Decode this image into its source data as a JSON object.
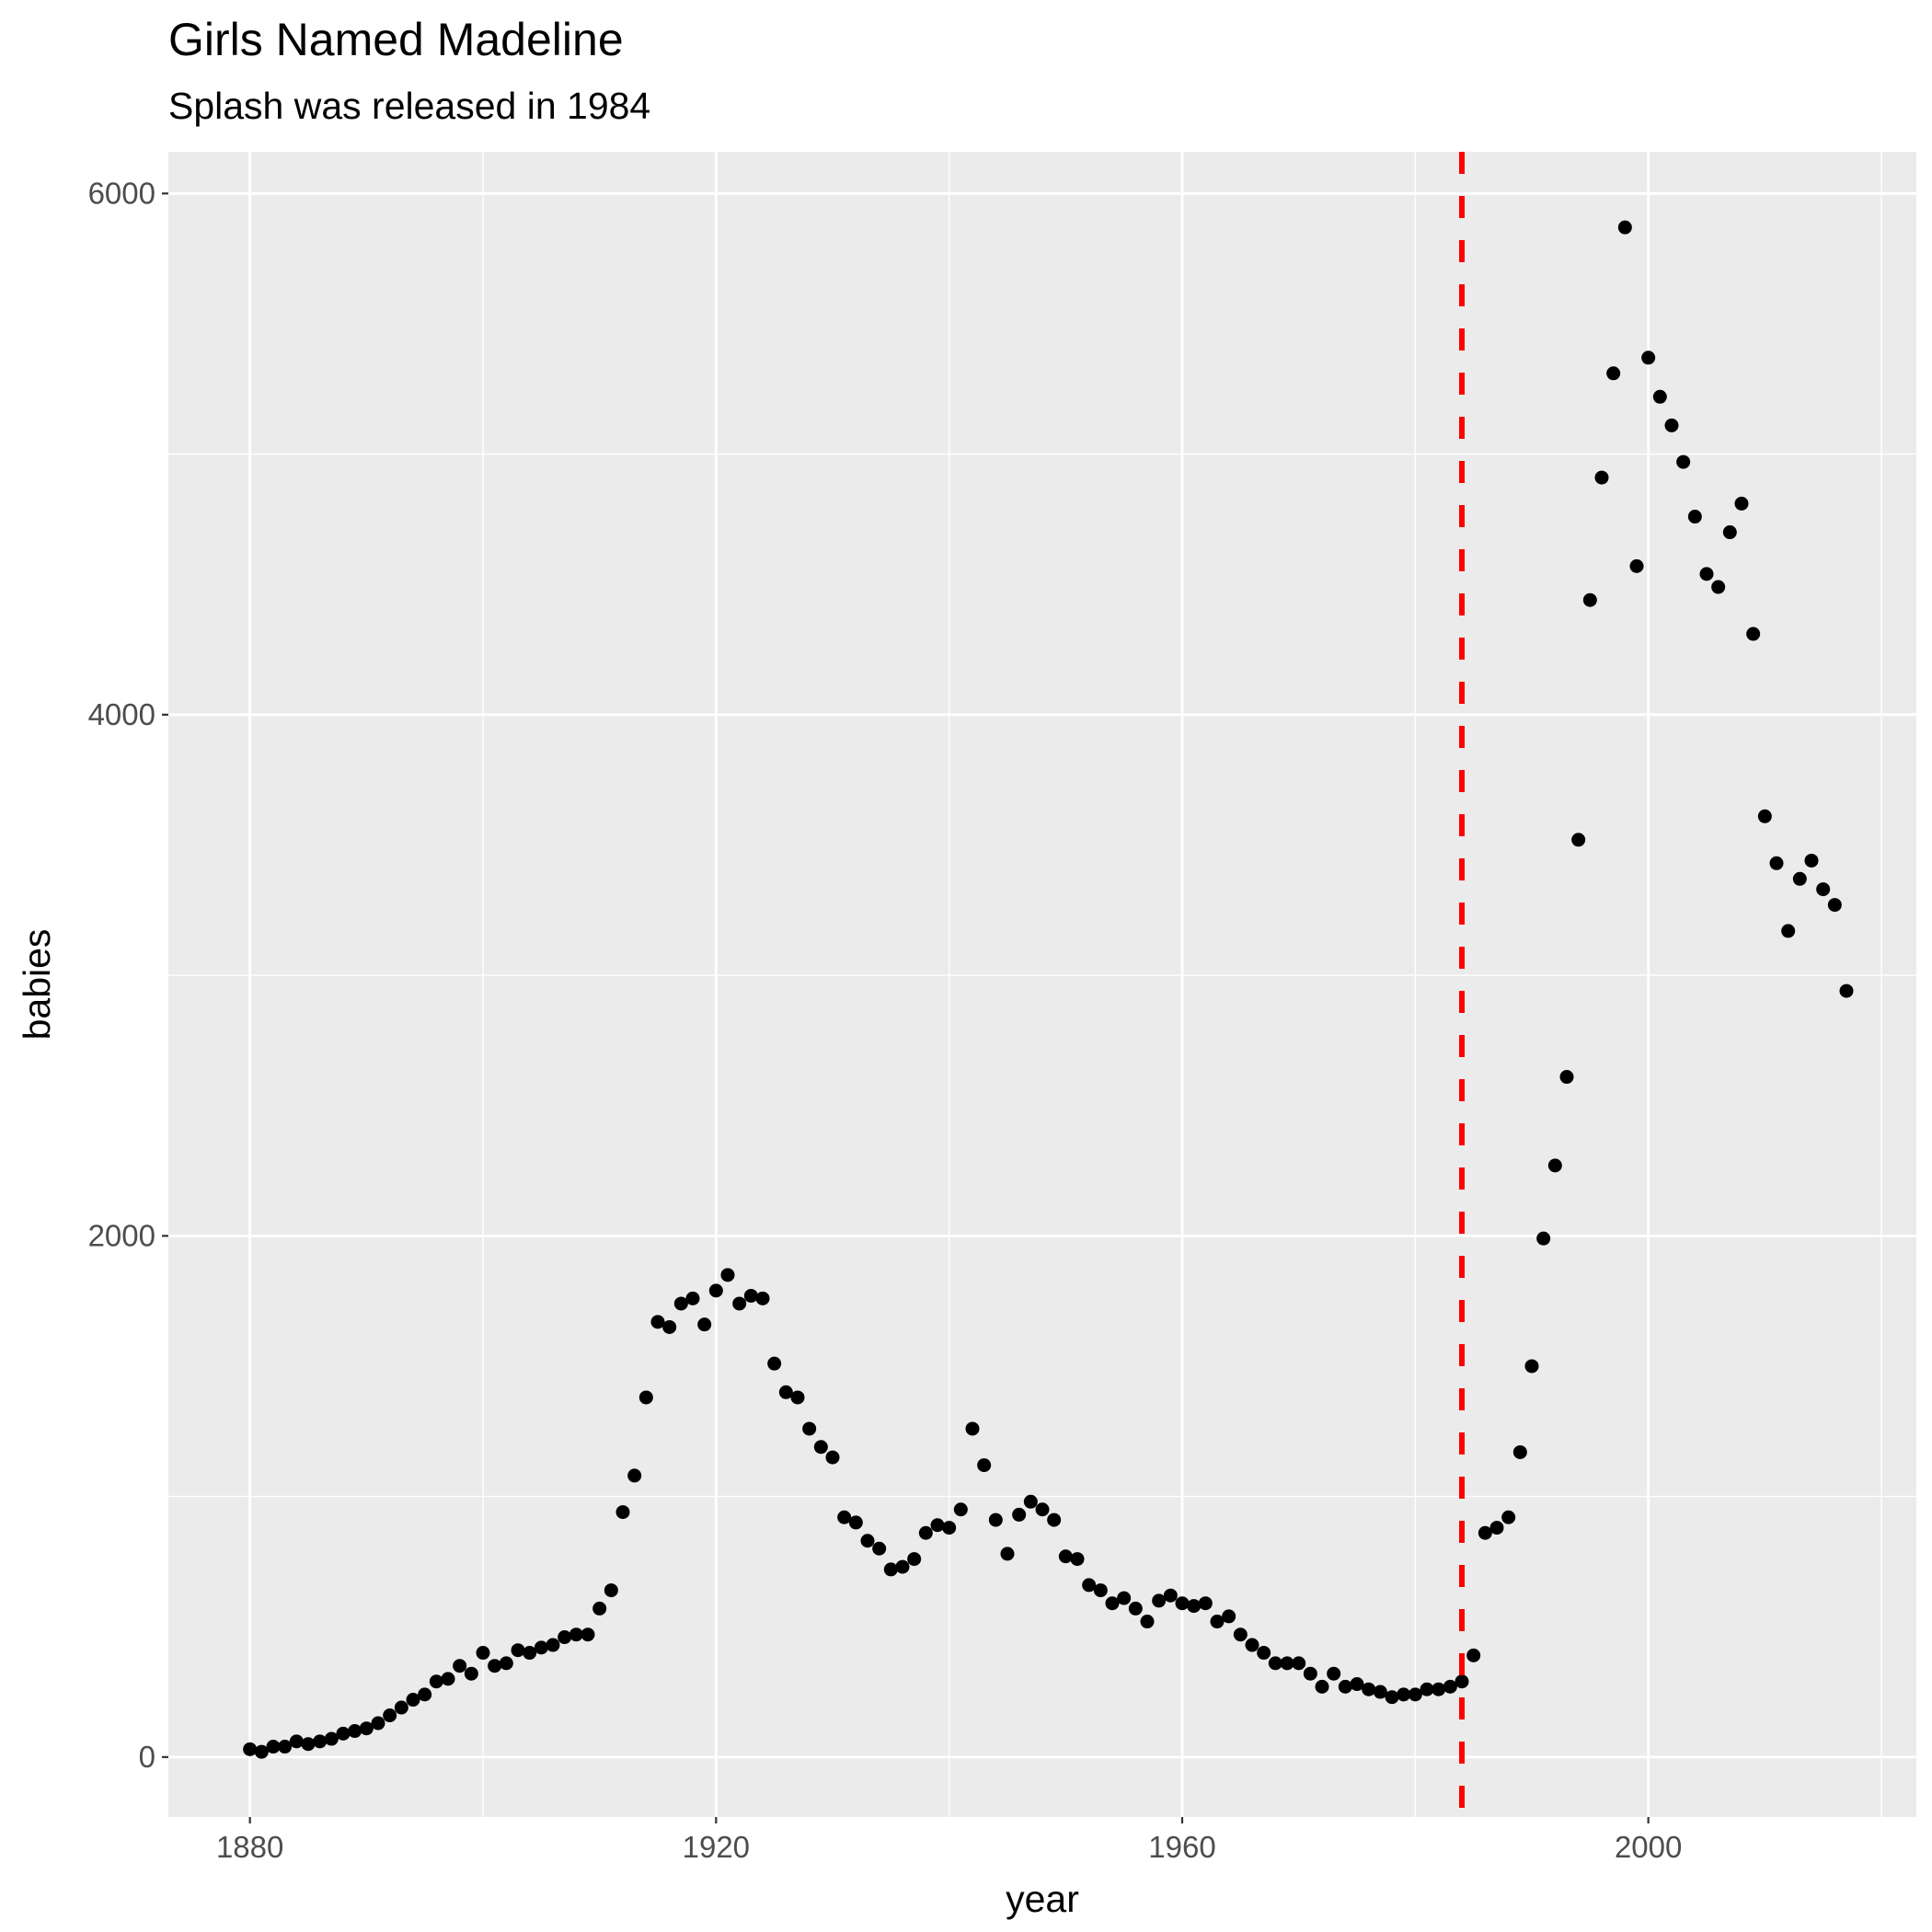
{
  "chart_data": {
    "type": "scatter",
    "title": "Girls Named Madeline",
    "subtitle": "Splash was released in 1984",
    "xlabel": "year",
    "ylabel": "babies",
    "xlim": [
      1873,
      2023
    ],
    "ylim": [
      -230,
      6160
    ],
    "x_ticks": [
      1880,
      1920,
      1960,
      2000
    ],
    "x_tick_labels": [
      "1880",
      "1920",
      "1960",
      "2000"
    ],
    "y_ticks": [
      0,
      2000,
      4000,
      6000
    ],
    "y_tick_labels": [
      "0",
      "2000",
      "4000",
      "6000"
    ],
    "grid": true,
    "reference_line": {
      "x": 1984,
      "color": "#ff0000",
      "style": "dashed"
    },
    "point_color": "#000000",
    "panel_background": "#ebebeb",
    "points": [
      {
        "x": 1880,
        "y": 30
      },
      {
        "x": 1881,
        "y": 20
      },
      {
        "x": 1882,
        "y": 40
      },
      {
        "x": 1883,
        "y": 40
      },
      {
        "x": 1884,
        "y": 60
      },
      {
        "x": 1885,
        "y": 50
      },
      {
        "x": 1886,
        "y": 60
      },
      {
        "x": 1887,
        "y": 70
      },
      {
        "x": 1888,
        "y": 90
      },
      {
        "x": 1889,
        "y": 100
      },
      {
        "x": 1890,
        "y": 110
      },
      {
        "x": 1891,
        "y": 130
      },
      {
        "x": 1892,
        "y": 160
      },
      {
        "x": 1893,
        "y": 190
      },
      {
        "x": 1894,
        "y": 220
      },
      {
        "x": 1895,
        "y": 240
      },
      {
        "x": 1896,
        "y": 290
      },
      {
        "x": 1897,
        "y": 300
      },
      {
        "x": 1898,
        "y": 350
      },
      {
        "x": 1899,
        "y": 320
      },
      {
        "x": 1900,
        "y": 400
      },
      {
        "x": 1901,
        "y": 350
      },
      {
        "x": 1902,
        "y": 360
      },
      {
        "x": 1903,
        "y": 410
      },
      {
        "x": 1904,
        "y": 400
      },
      {
        "x": 1905,
        "y": 420
      },
      {
        "x": 1906,
        "y": 430
      },
      {
        "x": 1907,
        "y": 460
      },
      {
        "x": 1908,
        "y": 470
      },
      {
        "x": 1909,
        "y": 470
      },
      {
        "x": 1910,
        "y": 570
      },
      {
        "x": 1911,
        "y": 640
      },
      {
        "x": 1912,
        "y": 940
      },
      {
        "x": 1913,
        "y": 1080
      },
      {
        "x": 1914,
        "y": 1380
      },
      {
        "x": 1915,
        "y": 1670
      },
      {
        "x": 1916,
        "y": 1650
      },
      {
        "x": 1917,
        "y": 1740
      },
      {
        "x": 1918,
        "y": 1760
      },
      {
        "x": 1919,
        "y": 1660
      },
      {
        "x": 1920,
        "y": 1790
      },
      {
        "x": 1921,
        "y": 1850
      },
      {
        "x": 1922,
        "y": 1740
      },
      {
        "x": 1923,
        "y": 1770
      },
      {
        "x": 1924,
        "y": 1760
      },
      {
        "x": 1925,
        "y": 1510
      },
      {
        "x": 1926,
        "y": 1400
      },
      {
        "x": 1927,
        "y": 1380
      },
      {
        "x": 1928,
        "y": 1260
      },
      {
        "x": 1929,
        "y": 1190
      },
      {
        "x": 1930,
        "y": 1150
      },
      {
        "x": 1931,
        "y": 920
      },
      {
        "x": 1932,
        "y": 900
      },
      {
        "x": 1933,
        "y": 830
      },
      {
        "x": 1934,
        "y": 800
      },
      {
        "x": 1935,
        "y": 720
      },
      {
        "x": 1936,
        "y": 730
      },
      {
        "x": 1937,
        "y": 760
      },
      {
        "x": 1938,
        "y": 860
      },
      {
        "x": 1939,
        "y": 890
      },
      {
        "x": 1940,
        "y": 880
      },
      {
        "x": 1941,
        "y": 950
      },
      {
        "x": 1942,
        "y": 1260
      },
      {
        "x": 1943,
        "y": 1120
      },
      {
        "x": 1944,
        "y": 910
      },
      {
        "x": 1945,
        "y": 780
      },
      {
        "x": 1946,
        "y": 930
      },
      {
        "x": 1947,
        "y": 980
      },
      {
        "x": 1948,
        "y": 950
      },
      {
        "x": 1949,
        "y": 910
      },
      {
        "x": 1950,
        "y": 770
      },
      {
        "x": 1951,
        "y": 760
      },
      {
        "x": 1952,
        "y": 660
      },
      {
        "x": 1953,
        "y": 640
      },
      {
        "x": 1954,
        "y": 590
      },
      {
        "x": 1955,
        "y": 610
      },
      {
        "x": 1956,
        "y": 570
      },
      {
        "x": 1957,
        "y": 520
      },
      {
        "x": 1958,
        "y": 600
      },
      {
        "x": 1959,
        "y": 620
      },
      {
        "x": 1960,
        "y": 590
      },
      {
        "x": 1961,
        "y": 580
      },
      {
        "x": 1962,
        "y": 590
      },
      {
        "x": 1963,
        "y": 520
      },
      {
        "x": 1964,
        "y": 540
      },
      {
        "x": 1965,
        "y": 470
      },
      {
        "x": 1966,
        "y": 430
      },
      {
        "x": 1967,
        "y": 400
      },
      {
        "x": 1968,
        "y": 360
      },
      {
        "x": 1969,
        "y": 360
      },
      {
        "x": 1970,
        "y": 360
      },
      {
        "x": 1971,
        "y": 320
      },
      {
        "x": 1972,
        "y": 270
      },
      {
        "x": 1973,
        "y": 320
      },
      {
        "x": 1974,
        "y": 270
      },
      {
        "x": 1975,
        "y": 280
      },
      {
        "x": 1976,
        "y": 260
      },
      {
        "x": 1977,
        "y": 250
      },
      {
        "x": 1978,
        "y": 230
      },
      {
        "x": 1979,
        "y": 240
      },
      {
        "x": 1980,
        "y": 240
      },
      {
        "x": 1981,
        "y": 260
      },
      {
        "x": 1982,
        "y": 260
      },
      {
        "x": 1983,
        "y": 270
      },
      {
        "x": 1984,
        "y": 290
      },
      {
        "x": 1985,
        "y": 390
      },
      {
        "x": 1986,
        "y": 860
      },
      {
        "x": 1987,
        "y": 880
      },
      {
        "x": 1988,
        "y": 920
      },
      {
        "x": 1989,
        "y": 1170
      },
      {
        "x": 1990,
        "y": 1500
      },
      {
        "x": 1991,
        "y": 1990
      },
      {
        "x": 1992,
        "y": 2270
      },
      {
        "x": 1993,
        "y": 2610
      },
      {
        "x": 1994,
        "y": 3520
      },
      {
        "x": 1995,
        "y": 4440
      },
      {
        "x": 1996,
        "y": 4910
      },
      {
        "x": 1997,
        "y": 5310
      },
      {
        "x": 1998,
        "y": 5870
      },
      {
        "x": 1999,
        "y": 4570
      },
      {
        "x": 2000,
        "y": 5370
      },
      {
        "x": 2001,
        "y": 5220
      },
      {
        "x": 2002,
        "y": 5110
      },
      {
        "x": 2003,
        "y": 4970
      },
      {
        "x": 2004,
        "y": 4760
      },
      {
        "x": 2005,
        "y": 4540
      },
      {
        "x": 2006,
        "y": 4490
      },
      {
        "x": 2007,
        "y": 4700
      },
      {
        "x": 2008,
        "y": 4810
      },
      {
        "x": 2009,
        "y": 4310
      },
      {
        "x": 2010,
        "y": 3610
      },
      {
        "x": 2011,
        "y": 3430
      },
      {
        "x": 2012,
        "y": 3170
      },
      {
        "x": 2013,
        "y": 3370
      },
      {
        "x": 2014,
        "y": 3440
      },
      {
        "x": 2015,
        "y": 3330
      },
      {
        "x": 2016,
        "y": 3270
      },
      {
        "x": 2017,
        "y": 2940
      }
    ]
  }
}
